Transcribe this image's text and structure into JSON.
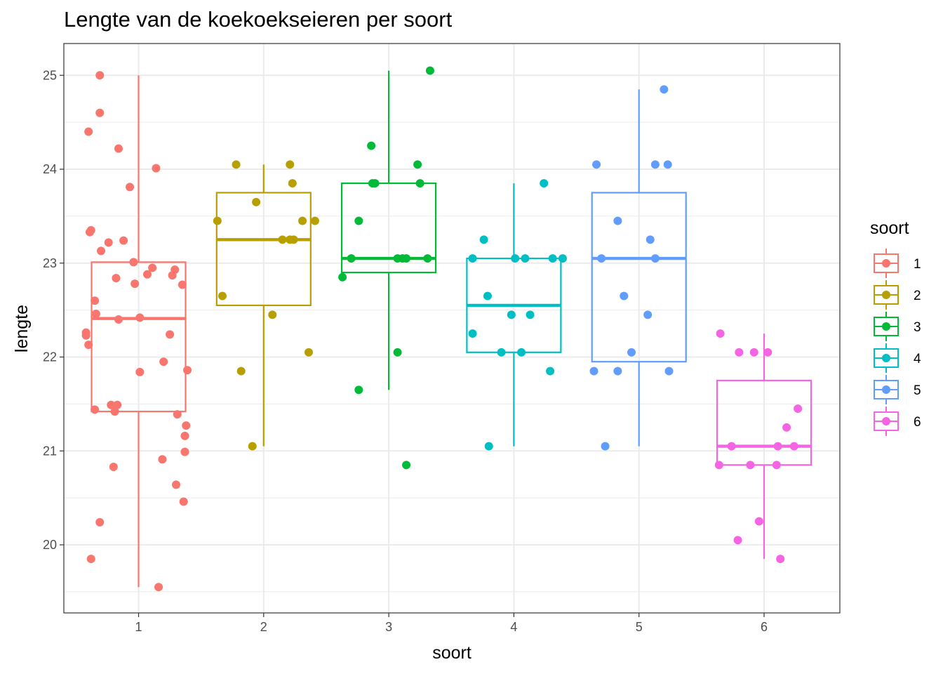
{
  "chart_data": {
    "type": "box",
    "title": "Lengte van de koekoekseieren per soort",
    "xlabel": "soort",
    "ylabel": "lengte",
    "categories": [
      "1",
      "2",
      "3",
      "4",
      "5",
      "6"
    ],
    "ylim": [
      19.5,
      25.3
    ],
    "yticks": [
      "20",
      "21",
      "22",
      "23",
      "24",
      "25"
    ],
    "grid": true,
    "legend": {
      "title": "soort",
      "position": "right",
      "entries": [
        "1",
        "2",
        "3",
        "4",
        "5",
        "6"
      ]
    },
    "colors": [
      "#F8766D",
      "#B79F00",
      "#00BA38",
      "#00BFC4",
      "#619CFF",
      "#F564E3"
    ],
    "boxes": [
      {
        "category": "1",
        "whisker_low": 19.55,
        "q1": 21.42,
        "median": 22.41,
        "q3": 23.01,
        "whisker_high": 25.0
      },
      {
        "category": "2",
        "whisker_low": 21.05,
        "q1": 22.55,
        "median": 23.25,
        "q3": 23.75,
        "whisker_high": 24.05
      },
      {
        "category": "3",
        "whisker_low": 21.65,
        "q1": 22.9,
        "median": 23.05,
        "q3": 23.85,
        "whisker_high": 25.05
      },
      {
        "category": "4",
        "whisker_low": 21.05,
        "q1": 22.05,
        "median": 22.55,
        "q3": 23.05,
        "whisker_high": 23.85
      },
      {
        "category": "5",
        "whisker_low": 21.05,
        "q1": 21.95,
        "median": 23.05,
        "q3": 23.75,
        "whisker_high": 24.85
      },
      {
        "category": "6",
        "whisker_low": 19.85,
        "q1": 20.85,
        "median": 21.05,
        "q3": 21.75,
        "whisker_high": 22.25
      }
    ],
    "points": [
      {
        "category": "1",
        "jitter": [
          -0.31,
          -0.31,
          -0.4,
          -0.39,
          -0.38,
          -0.35,
          -0.24,
          -0.12,
          -0.34,
          -0.16,
          -0.04,
          -0.18,
          -0.03,
          0.11,
          0.35,
          0.29,
          0.27,
          -0.42,
          -0.42,
          0.25,
          -0.4,
          -0.22,
          -0.17,
          -0.19,
          -0.35,
          -0.31,
          -0.38,
          -0.2,
          0.16,
          0.19,
          0.37,
          0.36,
          0.31,
          0.39,
          0.38,
          0.37,
          0.3,
          0.01,
          0.2,
          0.01,
          0.07,
          -0.3,
          -0.16,
          0.14,
          -0.07
        ],
        "y": [
          25.0,
          24.6,
          24.4,
          23.33,
          23.35,
          22.6,
          23.22,
          23.24,
          22.46,
          22.4,
          23.01,
          22.84,
          22.78,
          22.95,
          22.77,
          22.93,
          22.87,
          22.23,
          22.26,
          22.24,
          22.13,
          21.49,
          21.49,
          21.42,
          21.44,
          20.24,
          19.85,
          20.83,
          19.55,
          20.91,
          20.99,
          20.46,
          21.39,
          21.86,
          21.27,
          21.16,
          20.64,
          21.84,
          21.95,
          22.42,
          22.88,
          23.13,
          24.22,
          24.01,
          23.81
        ]
      },
      {
        "category": "2",
        "jitter": [
          -0.37,
          -0.33,
          -0.18,
          -0.09,
          -0.22,
          -0.06,
          0.15,
          0.24,
          0.21,
          0.31,
          0.41,
          0.36,
          0.07,
          0.23,
          0.21
        ],
        "y": [
          23.45,
          22.65,
          21.85,
          21.05,
          24.05,
          23.65,
          23.25,
          23.25,
          23.25,
          23.45,
          23.45,
          22.05,
          22.45,
          23.85,
          24.05
        ]
      },
      {
        "category": "3",
        "jitter": [
          -0.37,
          -0.3,
          -0.24,
          -0.24,
          -0.11,
          0.07,
          0.07,
          0.11,
          0.14,
          0.23,
          0.25,
          0.33,
          0.31,
          -0.14,
          -0.13,
          0.14
        ],
        "y": [
          22.85,
          23.05,
          23.45,
          21.65,
          23.85,
          23.05,
          22.05,
          23.05,
          20.85,
          24.05,
          23.85,
          25.05,
          23.05,
          24.25,
          23.85,
          23.05
        ]
      },
      {
        "category": "4",
        "jitter": [
          -0.33,
          -0.33,
          -0.24,
          -0.21,
          -0.2,
          -0.1,
          -0.02,
          0.01,
          0.06,
          0.13,
          0.09,
          0.24,
          0.29,
          0.31,
          0.39
        ],
        "y": [
          23.05,
          22.25,
          23.25,
          22.65,
          21.05,
          22.05,
          22.45,
          23.05,
          22.05,
          22.45,
          23.05,
          23.85,
          21.85,
          23.05,
          23.05
        ]
      },
      {
        "category": "5",
        "jitter": [
          -0.36,
          -0.34,
          -0.3,
          -0.27,
          -0.17,
          -0.17,
          -0.12,
          -0.06,
          0.07,
          0.09,
          0.13,
          0.13,
          0.24,
          0.2,
          0.23
        ],
        "y": [
          21.85,
          24.05,
          23.05,
          21.05,
          23.45,
          21.85,
          22.65,
          22.05,
          22.45,
          23.25,
          23.05,
          24.05,
          21.85,
          24.85,
          24.05
        ]
      },
      {
        "category": "6",
        "jitter": [
          -0.36,
          -0.35,
          -0.26,
          -0.21,
          -0.2,
          -0.11,
          -0.04,
          0.03,
          0.1,
          0.11,
          0.13,
          0.18,
          0.24,
          0.27,
          -0.08
        ],
        "y": [
          20.85,
          22.25,
          21.05,
          20.05,
          22.05,
          20.85,
          20.25,
          22.05,
          20.85,
          21.05,
          19.85,
          21.25,
          21.05,
          21.45,
          22.05
        ]
      }
    ]
  }
}
